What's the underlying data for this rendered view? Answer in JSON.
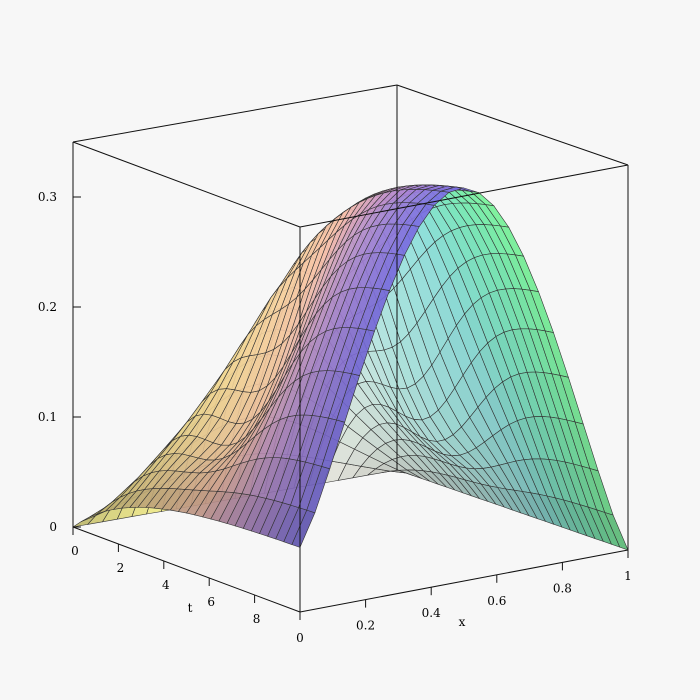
{
  "chart_data": {
    "type": "surface3d",
    "title": "",
    "xlabel": "x",
    "ylabel": "t",
    "zlabel": "",
    "x_range": [
      0,
      1
    ],
    "t_range": [
      0,
      10
    ],
    "z_range": [
      0,
      0.35
    ],
    "x_ticks": [
      "0",
      "0.2",
      "0.4",
      "0.6",
      "0.8",
      "1"
    ],
    "t_ticks": [
      "0",
      "2",
      "4",
      "6",
      "8"
    ],
    "z_ticks": [
      "0",
      "0.1",
      "0.2",
      "0.3"
    ],
    "surface": {
      "description_points": [
        {
          "x": 0.0,
          "t": 10,
          "z": 0.1
        },
        {
          "x": 1.0,
          "t": 10,
          "z": 0.0
        },
        {
          "x": 0.5,
          "t": 10,
          "z": 0.34
        },
        {
          "x": 0.0,
          "t": 0,
          "z": 0.0
        },
        {
          "x": 1.0,
          "t": 0,
          "z": 0.0
        }
      ]
    },
    "grid": false,
    "legend": "none"
  }
}
